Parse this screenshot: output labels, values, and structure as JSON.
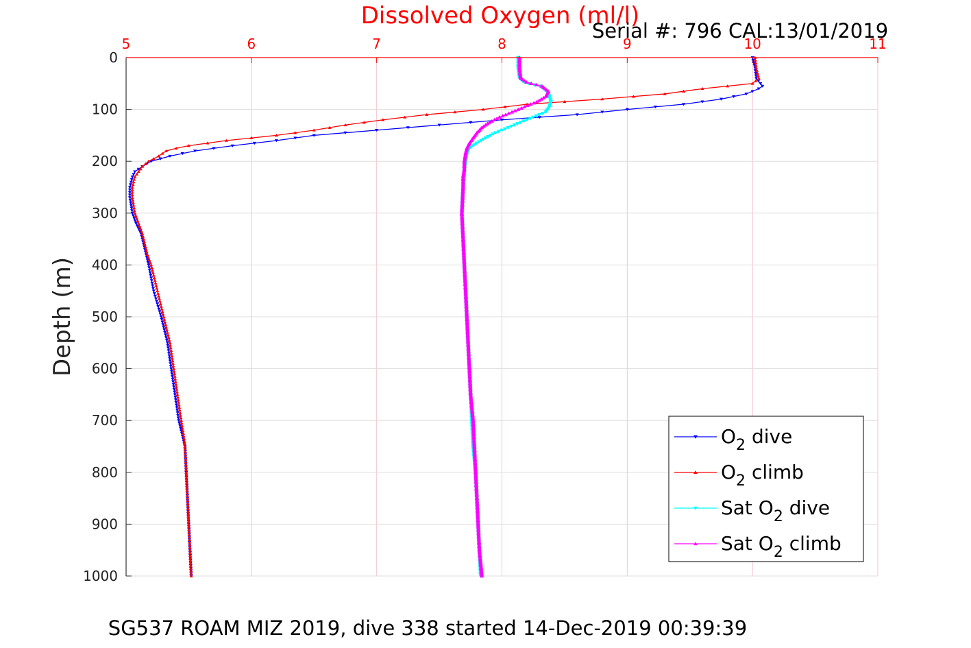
{
  "chart_data": {
    "type": "line",
    "title": "Dissolved Oxygen (ml/l)",
    "subtitle": "Serial #: 796  CAL:13/01/2019",
    "footer": "SG537 ROAM MIZ 2019, dive 338 started 14-Dec-2019 00:39:39",
    "xlabel": "Dissolved Oxygen (ml/l)",
    "ylabel": "Depth (m)",
    "xlim": [
      5,
      11
    ],
    "ylim": [
      0,
      1000
    ],
    "y_reversed": true,
    "x_axis_position": "top",
    "xticks": [
      "5",
      "6",
      "7",
      "8",
      "9",
      "10",
      "11"
    ],
    "yticks": [
      "0",
      "100",
      "200",
      "300",
      "400",
      "500",
      "600",
      "700",
      "800",
      "900",
      "1000"
    ],
    "grid": true,
    "legend_position": "bottom-right",
    "colors": {
      "title": "#ff0000",
      "xticks": "#ff0000",
      "grid": "#dddddd",
      "xgrid": "#f3c4cc"
    },
    "series": [
      {
        "name": "O2 dive",
        "legend": {
          "main": "O",
          "sub": "2",
          "tail": " dive"
        },
        "color": "#0000ff",
        "marker": "triangle-down",
        "depth": [
          0,
          20,
          40,
          55,
          60,
          70,
          80,
          90,
          100,
          110,
          120,
          130,
          140,
          150,
          160,
          170,
          180,
          190,
          200,
          210,
          220,
          230,
          250,
          270,
          300,
          320,
          340,
          360,
          380,
          400,
          450,
          500,
          550,
          600,
          650,
          700,
          730,
          750,
          800,
          850,
          900,
          950,
          1000
        ],
        "o2": [
          10.0,
          10.02,
          10.03,
          10.08,
          10.05,
          9.95,
          9.75,
          9.45,
          9.0,
          8.6,
          8.0,
          7.5,
          7.0,
          6.5,
          6.2,
          5.85,
          5.55,
          5.35,
          5.2,
          5.13,
          5.07,
          5.05,
          5.03,
          5.03,
          5.05,
          5.08,
          5.12,
          5.14,
          5.16,
          5.18,
          5.22,
          5.28,
          5.33,
          5.36,
          5.39,
          5.42,
          5.45,
          5.47,
          5.48,
          5.49,
          5.5,
          5.51,
          5.52
        ]
      },
      {
        "name": "O2 climb",
        "legend": {
          "main": "O",
          "sub": "2",
          "tail": " climb"
        },
        "color": "#ff0000",
        "marker": "triangle-up",
        "depth": [
          0,
          20,
          40,
          50,
          60,
          70,
          80,
          90,
          100,
          110,
          120,
          130,
          140,
          150,
          160,
          170,
          175,
          180,
          190,
          200,
          210,
          220,
          230,
          250,
          270,
          300,
          320,
          340,
          360,
          380,
          400,
          450,
          500,
          550,
          600,
          650,
          700,
          730,
          750,
          800,
          850,
          900,
          950,
          1000
        ],
        "o2": [
          10.02,
          10.03,
          10.05,
          10.0,
          9.6,
          9.3,
          8.8,
          8.2,
          7.85,
          7.4,
          7.05,
          6.75,
          6.5,
          6.2,
          5.8,
          5.5,
          5.4,
          5.32,
          5.26,
          5.18,
          5.13,
          5.1,
          5.07,
          5.05,
          5.05,
          5.07,
          5.1,
          5.13,
          5.15,
          5.17,
          5.2,
          5.25,
          5.3,
          5.35,
          5.38,
          5.41,
          5.44,
          5.46,
          5.47,
          5.48,
          5.49,
          5.5,
          5.51,
          5.52
        ]
      },
      {
        "name": "Sat O2 dive",
        "legend": {
          "main": "Sat O",
          "sub": "2",
          "tail": " dive"
        },
        "color": "#00ffff",
        "marker": "triangle-down",
        "depth": [
          0,
          20,
          40,
          48,
          55,
          65,
          75,
          85,
          95,
          105,
          115,
          125,
          135,
          145,
          155,
          165,
          175,
          185,
          200,
          215,
          230,
          250,
          300,
          350,
          400,
          450,
          500,
          550,
          600,
          650,
          700,
          750,
          800,
          850,
          900,
          950,
          1000
        ],
        "o2": [
          8.13,
          8.13,
          8.14,
          8.18,
          8.3,
          8.36,
          8.38,
          8.39,
          8.38,
          8.35,
          8.25,
          8.15,
          8.05,
          7.95,
          7.87,
          7.8,
          7.74,
          7.72,
          7.71,
          7.7,
          7.7,
          7.69,
          7.68,
          7.69,
          7.7,
          7.71,
          7.72,
          7.73,
          7.74,
          7.75,
          7.76,
          7.77,
          7.79,
          7.8,
          7.81,
          7.82,
          7.83
        ]
      },
      {
        "name": "Sat O2 climb",
        "legend": {
          "main": "Sat O",
          "sub": "2",
          "tail": " climb"
        },
        "color": "#ff00ff",
        "marker": "triangle-up",
        "depth": [
          0,
          20,
          40,
          48,
          55,
          65,
          75,
          85,
          95,
          105,
          115,
          125,
          135,
          145,
          155,
          165,
          175,
          185,
          200,
          215,
          230,
          250,
          300,
          350,
          400,
          450,
          500,
          550,
          600,
          650,
          700,
          750,
          800,
          850,
          900,
          950,
          1000
        ],
        "o2": [
          8.14,
          8.14,
          8.15,
          8.2,
          8.32,
          8.37,
          8.35,
          8.28,
          8.18,
          8.08,
          7.98,
          7.9,
          7.84,
          7.8,
          7.77,
          7.74,
          7.72,
          7.71,
          7.7,
          7.7,
          7.69,
          7.69,
          7.68,
          7.69,
          7.7,
          7.71,
          7.72,
          7.73,
          7.74,
          7.75,
          7.77,
          7.78,
          7.79,
          7.8,
          7.81,
          7.82,
          7.84
        ]
      }
    ]
  }
}
